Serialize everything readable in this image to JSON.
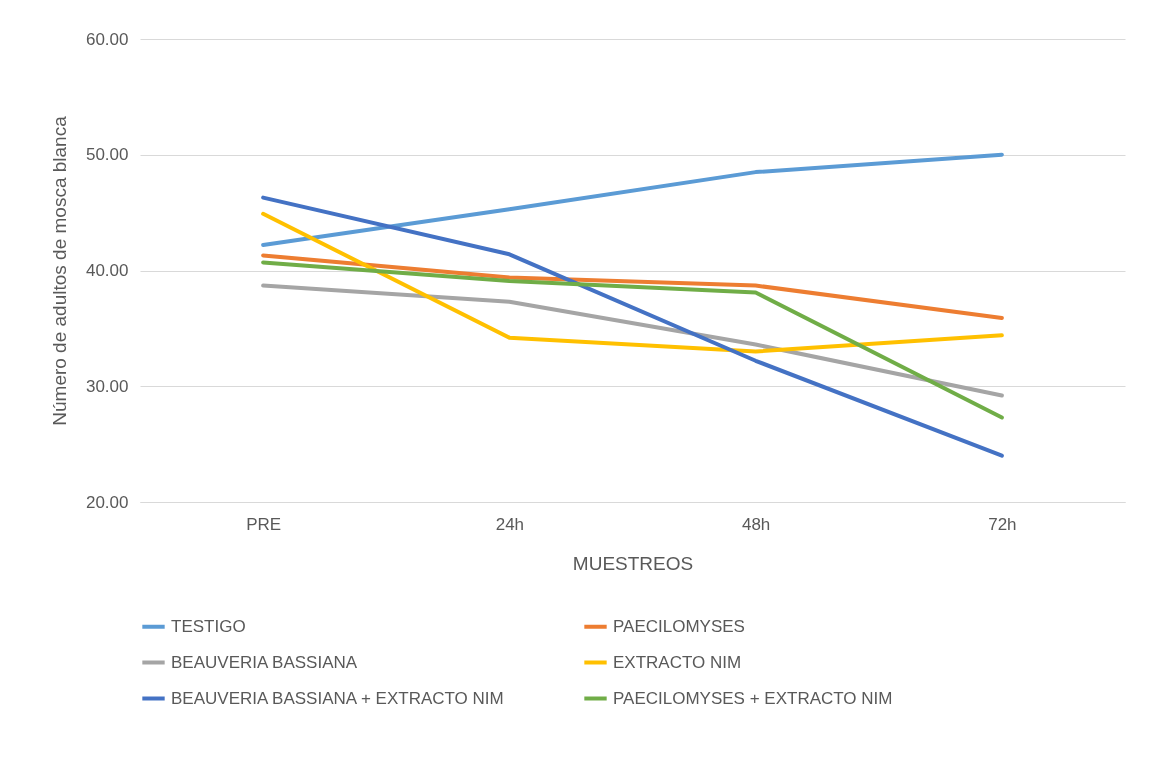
{
  "chart_data": {
    "type": "line",
    "xlabel": "MUESTREOS",
    "ylabel": "Número de adultos de mosca blanca",
    "categories": [
      "PRE",
      "24h",
      "48h",
      "72h"
    ],
    "ylim": [
      20,
      60
    ],
    "yticks": [
      {
        "value": 20,
        "label": "20.00"
      },
      {
        "value": 30,
        "label": "30.00"
      },
      {
        "value": 40,
        "label": "40.00"
      },
      {
        "value": 50,
        "label": "50.00"
      },
      {
        "value": 60,
        "label": "60.00"
      }
    ],
    "grid": "y",
    "legend": "bottom",
    "marker": "none",
    "series": [
      {
        "name": "TESTIGO",
        "color": "#5b9bd5",
        "values": [
          42.2,
          45.3,
          48.5,
          50.0
        ]
      },
      {
        "name": "PAECILOMYSES",
        "color": "#ed7d31",
        "values": [
          41.3,
          39.4,
          38.7,
          35.9
        ]
      },
      {
        "name": "BEAUVERIA BASSIANA",
        "color": "#a5a5a5",
        "values": [
          38.7,
          37.3,
          33.6,
          29.2
        ]
      },
      {
        "name": "EXTRACTO NIM",
        "color": "#ffc000",
        "values": [
          44.9,
          34.2,
          33.0,
          34.4
        ]
      },
      {
        "name": "BEAUVERIA BASSIANA + EXTRACTO NIM",
        "color": "#4472c4",
        "values": [
          46.3,
          41.4,
          32.2,
          24.0
        ]
      },
      {
        "name": "PAECILOMYSES + EXTRACTO NIM",
        "color": "#70ad47",
        "values": [
          40.7,
          39.1,
          38.1,
          27.3
        ]
      }
    ]
  }
}
